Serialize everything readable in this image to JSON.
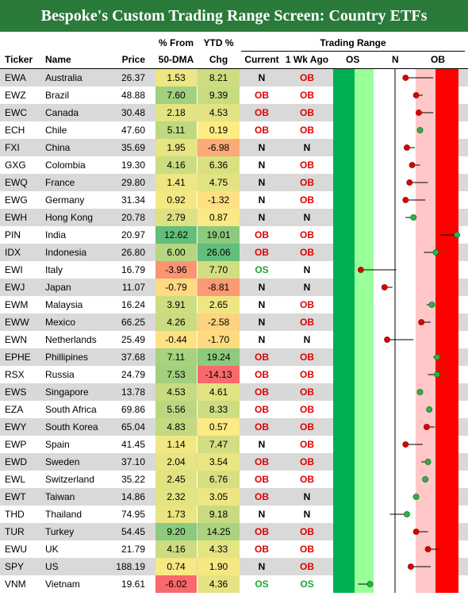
{
  "title": "Bespoke's Custom Trading Range Screen: Country ETFs",
  "headers": {
    "ticker": "Ticker",
    "name": "Name",
    "price": "Price",
    "dma_top": "% From",
    "dma_bottom": "50-DMA",
    "ytd_top": "YTD %",
    "ytd_bottom": "Chg",
    "trading_range": "Trading Range",
    "current": "Current",
    "week_ago": "1 Wk Ago",
    "os": "OS",
    "n": "N",
    "ob": "OB"
  },
  "colors": {
    "title_bg": "#2a7a3a",
    "ob_text": "#e00000",
    "os_text": "#1aa832",
    "zone_dark_green": "#00b050",
    "zone_light_green": "#99ff99",
    "zone_light_red": "#ffc7c7",
    "zone_red": "#ff0000",
    "row_shade": "#d9d9d9"
  },
  "rows": [
    {
      "ticker": "EWA",
      "name": "Australia",
      "price": "26.37",
      "dma": "1.53",
      "dma_v": 1.53,
      "ytd": "8.21",
      "ytd_v": 8.21,
      "current": "N",
      "week_ago": "OB",
      "cur_pos": 0.55,
      "wk_pos": 0.76
    },
    {
      "ticker": "EWZ",
      "name": "Brazil",
      "price": "48.88",
      "dma": "7.60",
      "dma_v": 7.6,
      "ytd": "9.39",
      "ytd_v": 9.39,
      "current": "OB",
      "week_ago": "OB",
      "cur_pos": 0.63,
      "wk_pos": 0.68
    },
    {
      "ticker": "EWC",
      "name": "Canada",
      "price": "30.48",
      "dma": "2.18",
      "dma_v": 2.18,
      "ytd": "4.53",
      "ytd_v": 4.53,
      "current": "OB",
      "week_ago": "OB",
      "cur_pos": 0.65,
      "wk_pos": 0.76
    },
    {
      "ticker": "ECH",
      "name": "Chile",
      "price": "47.60",
      "dma": "5.11",
      "dma_v": 5.11,
      "ytd": "0.19",
      "ytd_v": 0.19,
      "current": "OB",
      "week_ago": "OB",
      "cur_pos": 0.66,
      "wk_pos": 0.66
    },
    {
      "ticker": "FXI",
      "name": "China",
      "price": "35.69",
      "dma": "1.95",
      "dma_v": 1.95,
      "ytd": "-6.98",
      "ytd_v": -6.98,
      "current": "N",
      "week_ago": "N",
      "cur_pos": 0.56,
      "wk_pos": 0.62
    },
    {
      "ticker": "GXG",
      "name": "Colombia",
      "price": "19.30",
      "dma": "4.16",
      "dma_v": 4.16,
      "ytd": "6.36",
      "ytd_v": 6.36,
      "current": "N",
      "week_ago": "OB",
      "cur_pos": 0.6,
      "wk_pos": 0.66
    },
    {
      "ticker": "EWQ",
      "name": "France",
      "price": "29.80",
      "dma": "1.41",
      "dma_v": 1.41,
      "ytd": "4.75",
      "ytd_v": 4.75,
      "current": "N",
      "week_ago": "OB",
      "cur_pos": 0.58,
      "wk_pos": 0.72
    },
    {
      "ticker": "EWG",
      "name": "Germany",
      "price": "31.34",
      "dma": "0.92",
      "dma_v": 0.92,
      "ytd": "-1.32",
      "ytd_v": -1.32,
      "current": "N",
      "week_ago": "OB",
      "cur_pos": 0.55,
      "wk_pos": 0.7
    },
    {
      "ticker": "EWH",
      "name": "Hong Kong",
      "price": "20.78",
      "dma": "2.79",
      "dma_v": 2.79,
      "ytd": "0.87",
      "ytd_v": 0.87,
      "current": "N",
      "week_ago": "N",
      "cur_pos": 0.61,
      "wk_pos": 0.55
    },
    {
      "ticker": "PIN",
      "name": "India",
      "price": "20.97",
      "dma": "12.62",
      "dma_v": 12.62,
      "ytd": "19.01",
      "ytd_v": 19.01,
      "current": "OB",
      "week_ago": "OB",
      "cur_pos": 0.94,
      "wk_pos": 0.81
    },
    {
      "ticker": "IDX",
      "name": "Indonesia",
      "price": "26.80",
      "dma": "6.00",
      "dma_v": 6.0,
      "ytd": "26.06",
      "ytd_v": 26.06,
      "current": "OB",
      "week_ago": "OB",
      "cur_pos": 0.78,
      "wk_pos": 0.69
    },
    {
      "ticker": "EWI",
      "name": "Italy",
      "price": "16.79",
      "dma": "-3.96",
      "dma_v": -3.96,
      "ytd": "7.70",
      "ytd_v": 7.7,
      "current": "OS",
      "week_ago": "N",
      "cur_pos": 0.21,
      "wk_pos": 0.48
    },
    {
      "ticker": "EWJ",
      "name": "Japan",
      "price": "11.07",
      "dma": "-0.79",
      "dma_v": -0.79,
      "ytd": "-8.81",
      "ytd_v": -8.81,
      "current": "N",
      "week_ago": "N",
      "cur_pos": 0.39,
      "wk_pos": 0.45
    },
    {
      "ticker": "EWM",
      "name": "Malaysia",
      "price": "16.24",
      "dma": "3.91",
      "dma_v": 3.91,
      "ytd": "2.65",
      "ytd_v": 2.65,
      "current": "N",
      "week_ago": "OB",
      "cur_pos": 0.75,
      "wk_pos": 0.71
    },
    {
      "ticker": "EWW",
      "name": "Mexico",
      "price": "66.25",
      "dma": "4.26",
      "dma_v": 4.26,
      "ytd": "-2.58",
      "ytd_v": -2.58,
      "current": "N",
      "week_ago": "OB",
      "cur_pos": 0.67,
      "wk_pos": 0.74
    },
    {
      "ticker": "EWN",
      "name": "Netherlands",
      "price": "25.49",
      "dma": "-0.44",
      "dma_v": -0.44,
      "ytd": "-1.70",
      "ytd_v": -1.7,
      "current": "N",
      "week_ago": "N",
      "cur_pos": 0.41,
      "wk_pos": 0.61
    },
    {
      "ticker": "EPHE",
      "name": "Phillipines",
      "price": "37.68",
      "dma": "7.11",
      "dma_v": 7.11,
      "ytd": "19.24",
      "ytd_v": 19.24,
      "current": "OB",
      "week_ago": "OB",
      "cur_pos": 0.79,
      "wk_pos": 0.76
    },
    {
      "ticker": "RSX",
      "name": "Russia",
      "price": "24.79",
      "dma": "7.53",
      "dma_v": 7.53,
      "ytd": "-14.13",
      "ytd_v": -14.13,
      "current": "OB",
      "week_ago": "OB",
      "cur_pos": 0.79,
      "wk_pos": 0.72
    },
    {
      "ticker": "EWS",
      "name": "Singapore",
      "price": "13.78",
      "dma": "4.53",
      "dma_v": 4.53,
      "ytd": "4.61",
      "ytd_v": 4.61,
      "current": "OB",
      "week_ago": "OB",
      "cur_pos": 0.66,
      "wk_pos": 0.66
    },
    {
      "ticker": "EZA",
      "name": "South Africa",
      "price": "69.86",
      "dma": "5.56",
      "dma_v": 5.56,
      "ytd": "8.33",
      "ytd_v": 8.33,
      "current": "OB",
      "week_ago": "OB",
      "cur_pos": 0.73,
      "wk_pos": 0.73
    },
    {
      "ticker": "EWY",
      "name": "South Korea",
      "price": "65.04",
      "dma": "4.83",
      "dma_v": 4.83,
      "ytd": "0.57",
      "ytd_v": 0.57,
      "current": "OB",
      "week_ago": "OB",
      "cur_pos": 0.71,
      "wk_pos": 0.77
    },
    {
      "ticker": "EWP",
      "name": "Spain",
      "price": "41.45",
      "dma": "1.14",
      "dma_v": 1.14,
      "ytd": "7.47",
      "ytd_v": 7.47,
      "current": "N",
      "week_ago": "OB",
      "cur_pos": 0.55,
      "wk_pos": 0.68
    },
    {
      "ticker": "EWD",
      "name": "Sweden",
      "price": "37.10",
      "dma": "2.04",
      "dma_v": 2.04,
      "ytd": "3.54",
      "ytd_v": 3.54,
      "current": "OB",
      "week_ago": "OB",
      "cur_pos": 0.72,
      "wk_pos": 0.67
    },
    {
      "ticker": "EWL",
      "name": "Switzerland",
      "price": "35.22",
      "dma": "2.45",
      "dma_v": 2.45,
      "ytd": "6.76",
      "ytd_v": 6.76,
      "current": "OB",
      "week_ago": "OB",
      "cur_pos": 0.7,
      "wk_pos": 0.7
    },
    {
      "ticker": "EWT",
      "name": "Taiwan",
      "price": "14.86",
      "dma": "2.32",
      "dma_v": 2.32,
      "ytd": "3.05",
      "ytd_v": 3.05,
      "current": "OB",
      "week_ago": "N",
      "cur_pos": 0.63,
      "wk_pos": 0.61
    },
    {
      "ticker": "THD",
      "name": "Thailand",
      "price": "74.95",
      "dma": "1.73",
      "dma_v": 1.73,
      "ytd": "9.18",
      "ytd_v": 9.18,
      "current": "N",
      "week_ago": "N",
      "cur_pos": 0.56,
      "wk_pos": 0.43
    },
    {
      "ticker": "TUR",
      "name": "Turkey",
      "price": "54.45",
      "dma": "9.20",
      "dma_v": 9.2,
      "ytd": "14.25",
      "ytd_v": 14.25,
      "current": "OB",
      "week_ago": "OB",
      "cur_pos": 0.63,
      "wk_pos": 0.72
    },
    {
      "ticker": "EWU",
      "name": "UK",
      "price": "21.79",
      "dma": "4.16",
      "dma_v": 4.16,
      "ytd": "4.33",
      "ytd_v": 4.33,
      "current": "OB",
      "week_ago": "OB",
      "cur_pos": 0.72,
      "wk_pos": 0.81
    },
    {
      "ticker": "SPY",
      "name": "US",
      "price": "188.19",
      "dma": "0.74",
      "dma_v": 0.74,
      "ytd": "1.90",
      "ytd_v": 1.9,
      "current": "N",
      "week_ago": "OB",
      "cur_pos": 0.59,
      "wk_pos": 0.74
    },
    {
      "ticker": "VNM",
      "name": "Vietnam",
      "price": "19.61",
      "dma": "-6.02",
      "dma_v": -6.02,
      "ytd": "4.36",
      "ytd_v": 4.36,
      "current": "OS",
      "week_ago": "OS",
      "cur_pos": 0.28,
      "wk_pos": 0.19
    }
  ]
}
